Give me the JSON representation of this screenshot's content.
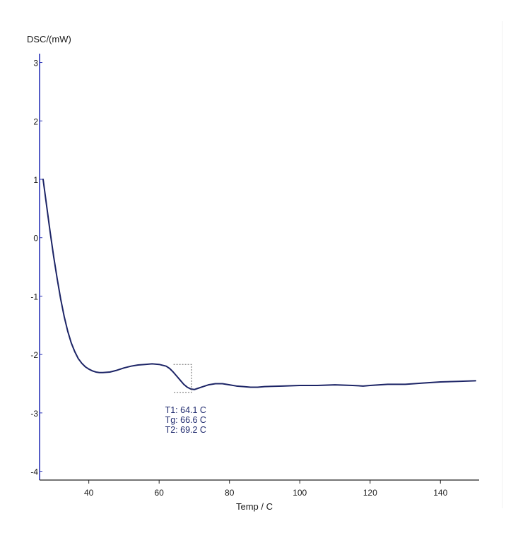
{
  "chart_data": {
    "type": "line",
    "ylabel": "DSC/(mW)",
    "xlabel": "Temp / C",
    "xlim": [
      26,
      151
    ],
    "ylim": [
      -4.15,
      3.2
    ],
    "x_ticks": [
      40,
      60,
      80,
      100,
      120,
      140
    ],
    "y_ticks": [
      3,
      2,
      1,
      0,
      -1,
      -2,
      -3,
      -4
    ],
    "grid": false,
    "colors": {
      "series": "#1c2466",
      "axis": "#2b34b8",
      "annotation": "#1f2a6e"
    },
    "series": [
      {
        "x": [
          27,
          28,
          29,
          30,
          31,
          32,
          33,
          34,
          35,
          36,
          37,
          38,
          39,
          40,
          41,
          42,
          43,
          44,
          46,
          48,
          50,
          52,
          54,
          56,
          58,
          60,
          62,
          63,
          64,
          65,
          66,
          67,
          68,
          69,
          70,
          71,
          72,
          74,
          76,
          78,
          80,
          82,
          84,
          86,
          88,
          90,
          95,
          100,
          105,
          110,
          115,
          118,
          120,
          125,
          130,
          135,
          140,
          145,
          150
        ],
        "y": [
          1.0,
          0.55,
          0.1,
          -0.32,
          -0.7,
          -1.05,
          -1.35,
          -1.6,
          -1.8,
          -1.95,
          -2.07,
          -2.15,
          -2.21,
          -2.25,
          -2.28,
          -2.3,
          -2.31,
          -2.31,
          -2.3,
          -2.27,
          -2.23,
          -2.2,
          -2.18,
          -2.17,
          -2.16,
          -2.17,
          -2.2,
          -2.24,
          -2.3,
          -2.37,
          -2.44,
          -2.51,
          -2.56,
          -2.59,
          -2.6,
          -2.58,
          -2.56,
          -2.52,
          -2.5,
          -2.5,
          -2.52,
          -2.54,
          -2.55,
          -2.56,
          -2.56,
          -2.55,
          -2.54,
          -2.53,
          -2.53,
          -2.52,
          -2.53,
          -2.54,
          -2.53,
          -2.51,
          -2.51,
          -2.49,
          -2.47,
          -2.46,
          -2.45
        ]
      }
    ],
    "glass_transition": {
      "labels": [
        "T1: 64.1 C",
        "Tg: 66.6 C",
        "T2: 69.2 C"
      ],
      "T1": 64.1,
      "Tg": 66.6,
      "T2": 69.2,
      "construction_box": {
        "x_range": [
          64.1,
          69.2
        ],
        "y_range": [
          -2.17,
          -2.65
        ]
      }
    }
  }
}
